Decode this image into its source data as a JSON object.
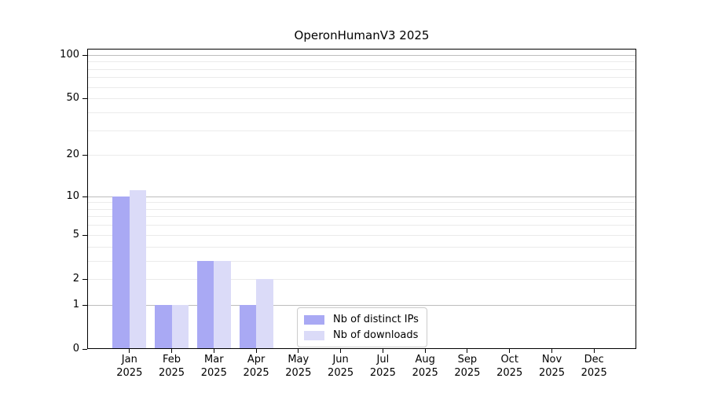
{
  "title": "OperonHumanV3 2025",
  "chart_data": {
    "type": "bar",
    "title": "OperonHumanV3 2025",
    "xlabel": "",
    "ylabel": "",
    "year": "2025",
    "categories": [
      "Jan",
      "Feb",
      "Mar",
      "Apr",
      "May",
      "Jun",
      "Jul",
      "Aug",
      "Sep",
      "Oct",
      "Nov",
      "Dec"
    ],
    "series": [
      {
        "name": "Nb of distinct IPs",
        "color": "#a9a9f4",
        "values": [
          10,
          1,
          3,
          1,
          0,
          0,
          0,
          0,
          0,
          0,
          0,
          0
        ]
      },
      {
        "name": "Nb of downloads",
        "color": "#dbdbf8",
        "values": [
          11,
          1,
          3,
          2,
          0,
          0,
          0,
          0,
          0,
          0,
          0,
          0
        ]
      }
    ],
    "yticks": [
      0,
      1,
      2,
      5,
      10,
      20,
      50,
      100
    ],
    "y_major_gridlines": [
      1,
      10,
      100
    ],
    "y_minor_gridlines": [
      2,
      3,
      4,
      5,
      6,
      7,
      8,
      9,
      20,
      30,
      40,
      50,
      60,
      70,
      80,
      90
    ],
    "scale": "log10(value+1)",
    "ylim": [
      0,
      110
    ],
    "grid": "horizontal",
    "legend_position": "lower-center-inside",
    "colors": {
      "grid_minor": "#ebebeb",
      "grid_major": "#bdbdbd",
      "spine": "#000000",
      "text": "#000000",
      "background": "#ffffff"
    }
  }
}
